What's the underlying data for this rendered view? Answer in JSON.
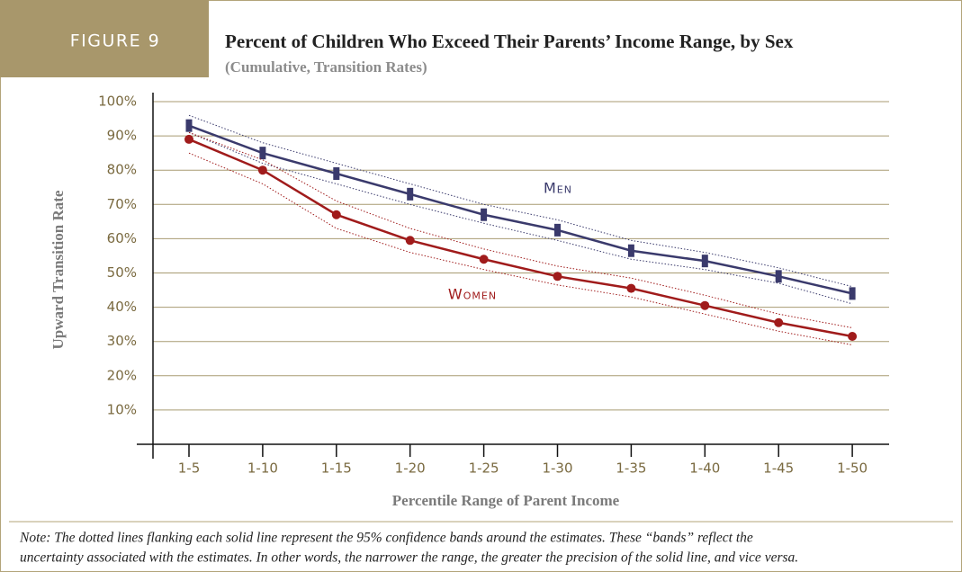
{
  "chart_data": {
    "type": "line",
    "figure_label": "FIGURE 9",
    "title": "Percent of Children Who Exceed Their Parents’ Income Range, by Sex",
    "subtitle": "(Cumulative, Transition Rates)",
    "x_label": "Percentile Range of Parent Income",
    "y_label": "Upward Transition Rate",
    "categories": [
      "1-5",
      "1-10",
      "1-15",
      "1-20",
      "1-25",
      "1-30",
      "1-35",
      "1-40",
      "1-45",
      "1-50"
    ],
    "series": [
      {
        "name": "Men",
        "color": "#3a3a6c",
        "marker": "bar",
        "values": [
          93,
          85,
          79,
          73,
          67,
          62.5,
          56.5,
          53.5,
          49,
          44
        ],
        "ci_upper": [
          96,
          88,
          82,
          76,
          70,
          65.5,
          59.5,
          56,
          51.5,
          46
        ],
        "ci_lower": [
          91,
          82,
          76,
          70,
          64.5,
          59.5,
          54,
          51,
          47,
          41
        ]
      },
      {
        "name": "Women",
        "color": "#a01b1b",
        "marker": "circle",
        "values": [
          89,
          80,
          67,
          59.5,
          54,
          49,
          45.5,
          40.5,
          35.5,
          31.5
        ],
        "ci_upper": [
          91,
          83,
          71,
          63,
          57,
          52,
          48.5,
          43.5,
          38,
          34
        ],
        "ci_lower": [
          85,
          76,
          63,
          56,
          51,
          46.5,
          43,
          38,
          33,
          29
        ]
      }
    ],
    "ylim": [
      0,
      100
    ],
    "yticks": [
      {
        "value": 10,
        "label": "10%"
      },
      {
        "value": 20,
        "label": "20%"
      },
      {
        "value": 30,
        "label": "30%"
      },
      {
        "value": 40,
        "label": "40%"
      },
      {
        "value": 50,
        "label": "50%"
      },
      {
        "value": 60,
        "label": "60%"
      },
      {
        "value": 70,
        "label": "70%"
      },
      {
        "value": 80,
        "label": "80%"
      },
      {
        "value": 90,
        "label": "90%"
      },
      {
        "value": 100,
        "label": "100%"
      }
    ],
    "grid": true,
    "note": [
      "Note: The dotted lines flanking each solid line represent the 95% confidence bands around the estimates. These “bands” reflect the",
      "uncertainty associated with the estimates. In other words, the narrower the range, the greater the precision of the solid line, and vice versa."
    ]
  }
}
